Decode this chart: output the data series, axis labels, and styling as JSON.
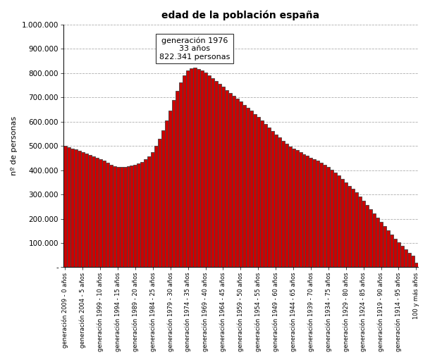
{
  "title": "edad de la población españa",
  "ylabel": "nº de personas",
  "annotation": "generación 1976\n33 años\n822.341 personas",
  "background_color": "#ffffff",
  "bar_color": "#cc0000",
  "bar_edge_color": "#444444",
  "categories": [
    "generación 2009 - 0 años",
    "generación 2004 - 5 años",
    "generación 1999 - 10 años",
    "generación 1994 - 15 años",
    "generación 1989 - 20 años",
    "generación 1984 - 25 años",
    "generación 1979 - 30 años",
    "generación 1974 - 35 años",
    "generación 1969 - 40 años",
    "generación 1964 - 45 años",
    "generación 1959 - 50 años",
    "generación 1954 - 55 años",
    "generación 1949 - 60 años",
    "generación 1944 - 65 años",
    "generación 1939 - 70 años",
    "generación 1934 - 75 años",
    "generación 1929 - 80 años",
    "generación 1924 - 85 años",
    "generación 1919 - 90 años",
    "generación 1914 - 95 años",
    "100 y más años"
  ],
  "ylim": [
    0,
    1000000
  ],
  "yticks": [
    0,
    100000,
    200000,
    300000,
    400000,
    500000,
    600000,
    700000,
    800000,
    900000,
    1000000
  ],
  "values": [
    500000,
    495000,
    490000,
    485000,
    480000,
    475000,
    468000,
    462000,
    456000,
    452000,
    445000,
    438000,
    430000,
    422000,
    415000,
    412000,
    412000,
    413000,
    415000,
    418000,
    422000,
    428000,
    435000,
    445000,
    458000,
    475000,
    500000,
    530000,
    565000,
    605000,
    645000,
    690000,
    728000,
    762000,
    790000,
    810000,
    820000,
    822341,
    818000,
    812000,
    803000,
    792000,
    780000,
    768000,
    756000,
    743000,
    730000,
    718000,
    706000,
    694000,
    682000,
    670000,
    658000,
    645000,
    632000,
    618000,
    604000,
    590000,
    576000,
    562000,
    548000,
    534000,
    520000,
    508000,
    498000,
    490000,
    482000,
    475000,
    467000,
    460000,
    452000,
    445000,
    438000,
    430000,
    422000,
    412000,
    402000,
    390000,
    378000,
    364000,
    350000,
    336000,
    322000,
    308000,
    292000,
    275000,
    258000,
    240000,
    222000,
    205000,
    188000,
    170000,
    153000,
    135000,
    118000,
    102000,
    87000,
    73000,
    60000,
    48000,
    20000
  ]
}
